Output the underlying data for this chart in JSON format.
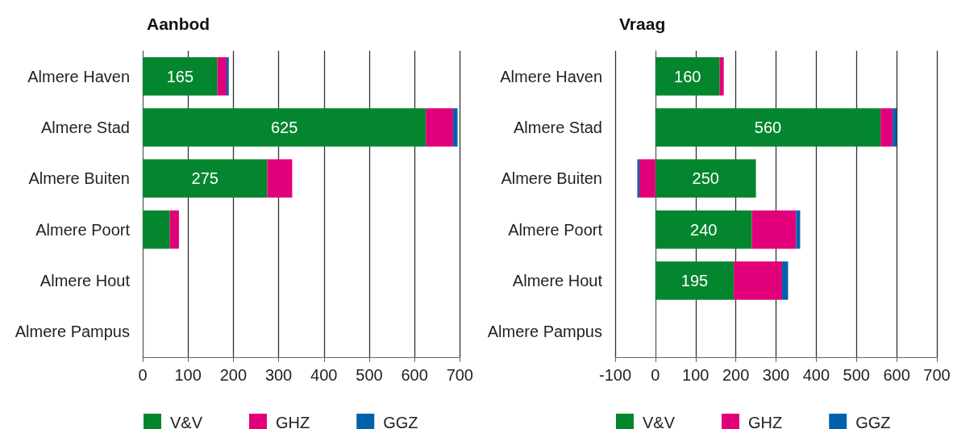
{
  "chart_data": [
    {
      "type": "bar",
      "orientation": "horizontal",
      "stacked": true,
      "title": "Aanbod",
      "categories": [
        "Almere Haven",
        "Almere Stad",
        "Almere Buiten",
        "Almere Poort",
        "Almere Hout",
        "Almere Pampus"
      ],
      "series": [
        {
          "name": "V&V",
          "color": "#03862e",
          "values": [
            165,
            625,
            275,
            60,
            null,
            null
          ],
          "value_labels": [
            "165",
            "625",
            "275",
            null,
            null,
            null
          ]
        },
        {
          "name": "GHZ",
          "color": "#e2007a",
          "values": [
            20,
            60,
            55,
            20,
            null,
            null
          ]
        },
        {
          "name": "GGZ",
          "color": "#0062ad",
          "values": [
            5,
            10,
            null,
            null,
            null,
            null
          ]
        }
      ],
      "xlim": [
        0,
        700
      ],
      "xticks": [
        0,
        100,
        200,
        300,
        400,
        500,
        600,
        700
      ],
      "grid": "x",
      "legend": "bottom"
    },
    {
      "type": "bar",
      "orientation": "horizontal",
      "stacked": true,
      "title": "Vraag",
      "categories": [
        "Almere Haven",
        "Almere Stad",
        "Almere Buiten",
        "Almere Poort",
        "Almere Hout",
        "Almere Pampus"
      ],
      "series": [
        {
          "name": "V&V",
          "color": "#03862e",
          "values": [
            160,
            560,
            250,
            240,
            195,
            null
          ],
          "value_labels": [
            "160",
            "560",
            "250",
            "240",
            "195",
            null
          ]
        },
        {
          "name": "GHZ",
          "color": "#e2007a",
          "values": [
            10,
            30,
            -40,
            110,
            120,
            null
          ]
        },
        {
          "name": "GGZ",
          "color": "#0062ad",
          "values": [
            null,
            10,
            -5,
            10,
            15,
            null
          ]
        }
      ],
      "xlim": [
        -100,
        700
      ],
      "xticks": [
        -100,
        0,
        100,
        200,
        300,
        400,
        500,
        600,
        700
      ],
      "grid": "x",
      "legend": "bottom"
    }
  ]
}
